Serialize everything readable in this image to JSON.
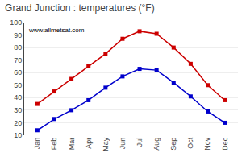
{
  "chart_data": {
    "type": "line",
    "title": "Grand Junction : temperatures (°F)",
    "categories": [
      "Jan",
      "Feb",
      "Mar",
      "Apr",
      "May",
      "Jun",
      "Jul",
      "Aug",
      "Sep",
      "Oct",
      "Nov",
      "Dec"
    ],
    "series": [
      {
        "color": "#cc0000",
        "values": [
          35,
          45,
          55,
          65,
          75,
          87,
          93,
          91,
          80,
          67,
          50,
          38
        ]
      },
      {
        "color": "#0000cc",
        "values": [
          14,
          23,
          30,
          38,
          48,
          57,
          63,
          62,
          52,
          41,
          29,
          20
        ]
      }
    ],
    "marker": "square",
    "ylim": [
      10,
      100
    ],
    "yticks": [
      10,
      20,
      30,
      40,
      50,
      60,
      70,
      80,
      90,
      100
    ],
    "grid": true,
    "annotations": [
      "www.allmetsat.com"
    ]
  }
}
